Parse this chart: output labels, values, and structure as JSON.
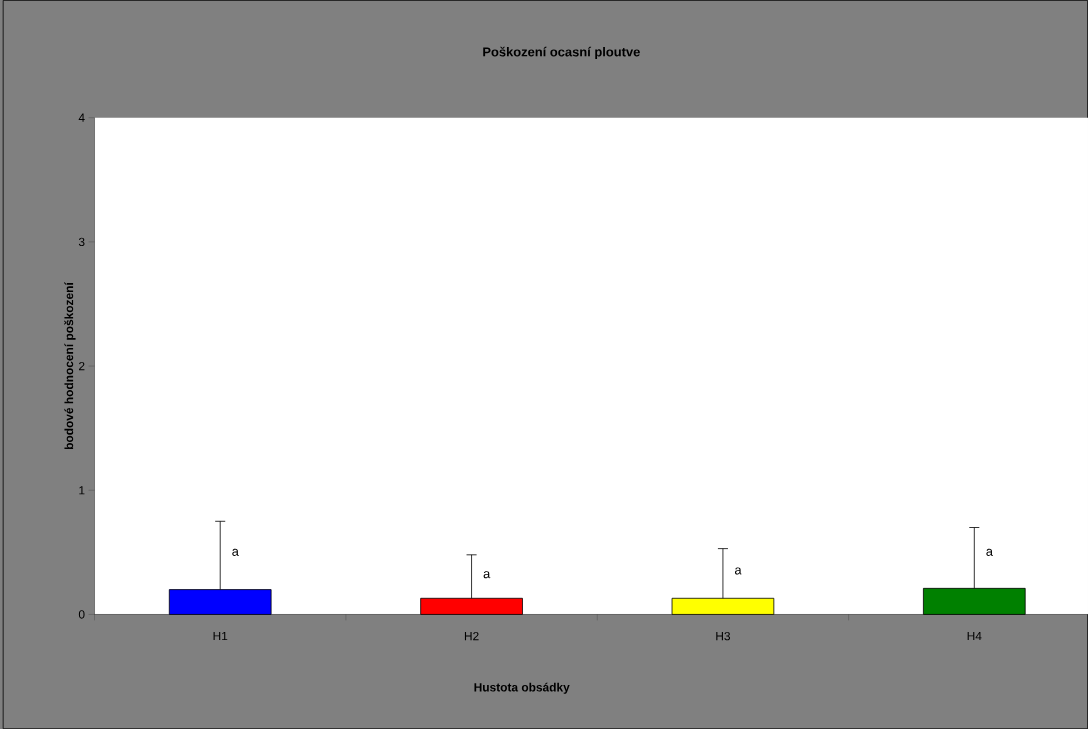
{
  "chart_data": {
    "type": "bar",
    "title": "Poškození ocasní ploutve",
    "xlabel": "Hustota obsádky",
    "ylabel": "bodové hodnocení poškození",
    "categories": [
      "H1",
      "H2",
      "H3",
      "H4"
    ],
    "values": [
      0.2,
      0.13,
      0.13,
      0.21
    ],
    "colors": [
      "#0000ff",
      "#ff0000",
      "#ffff00",
      "#008000"
    ],
    "errors": [
      [
        0.2,
        0.75
      ],
      [
        0.13,
        0.48
      ],
      [
        0.13,
        0.53
      ],
      [
        0.21,
        0.7
      ]
    ],
    "ylim": [
      0,
      4
    ],
    "yticks": [
      0,
      1,
      2,
      3,
      4
    ],
    "grid": false,
    "annotations": [
      {
        "text": "a",
        "x": "H1",
        "y": 0.5
      },
      {
        "text": "a",
        "x": "H2",
        "y": 0.32
      },
      {
        "text": "a",
        "x": "H3",
        "y": 0.35
      },
      {
        "text": "a",
        "x": "H4",
        "y": 0.5
      }
    ]
  }
}
